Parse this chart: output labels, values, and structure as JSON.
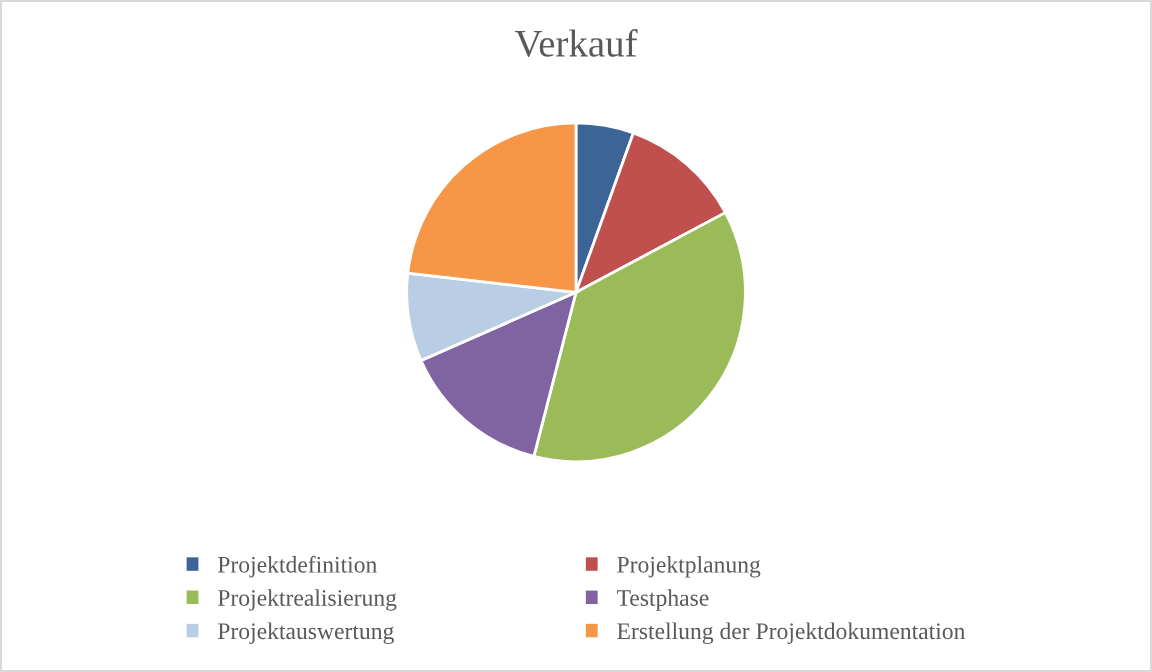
{
  "chart_data": {
    "type": "pie",
    "title": "Verkauf",
    "categories": [
      "Projektdefinition",
      "Projektplanung",
      "Projektrealisierung",
      "Testphase",
      "Projektauswertung",
      "Erstellung der Projektdokumentation"
    ],
    "values": [
      5.5,
      11.7,
      36.8,
      14.4,
      8.4,
      23.2
    ],
    "colors": [
      "#3c6497",
      "#c0504d",
      "#9bbb59",
      "#8064a2",
      "#b9cde5",
      "#f79646"
    ],
    "legend": "bottom"
  }
}
